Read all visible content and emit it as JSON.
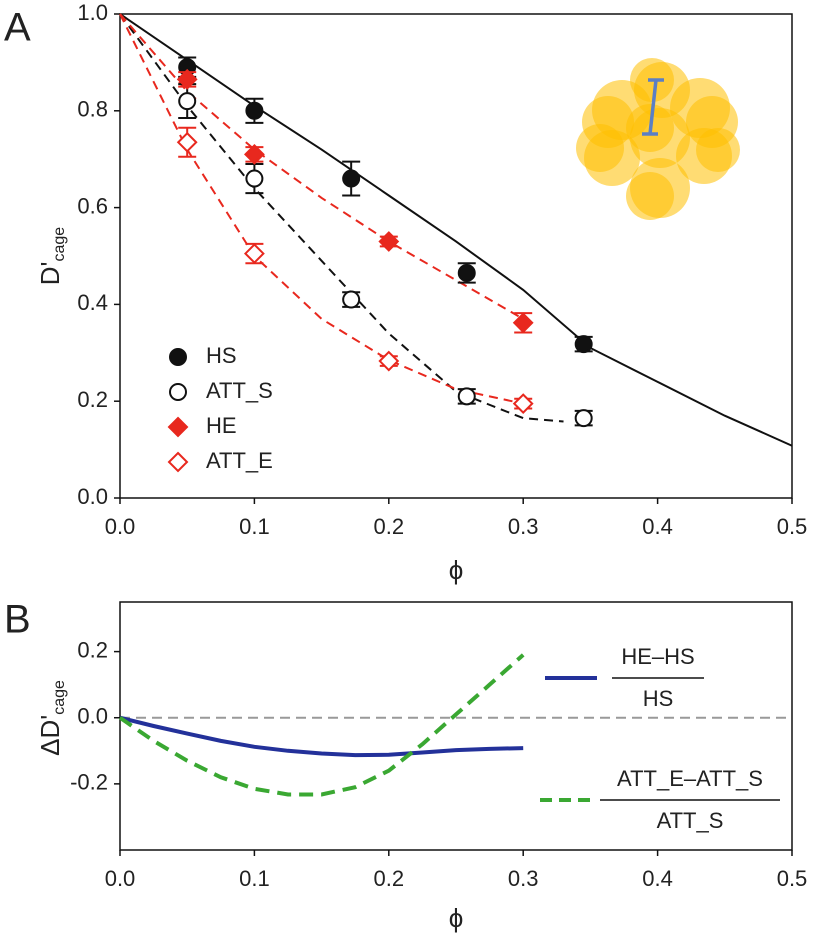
{
  "chart_data": [
    {
      "type": "scatter",
      "panel": "A",
      "xlabel": "ϕ",
      "ylabel": {
        "main": "D'",
        "sub": "cage"
      },
      "xlim": [
        0,
        0.5
      ],
      "ylim": [
        0,
        1
      ],
      "xticks": [
        {
          "value": 0,
          "label": "0.0"
        },
        0.1,
        0.2,
        0.3,
        0.4,
        0.5
      ],
      "yticks": [
        {
          "value": 0,
          "label": "0.0"
        },
        0.2,
        0.4,
        0.6,
        0.8,
        {
          "value": 1,
          "label": "1.0"
        }
      ],
      "series": [
        {
          "name": "HS",
          "color": "#111111",
          "marker": "circle",
          "filled": true,
          "x": [
            0.05,
            0.1,
            0.172,
            0.258,
            0.345
          ],
          "values": [
            0.89,
            0.8,
            0.66,
            0.465,
            0.318
          ],
          "errors": [
            0.02,
            0.025,
            0.035,
            0.02,
            0.015
          ]
        },
        {
          "name": "ATT_S",
          "color": "#111111",
          "marker": "circle",
          "filled": false,
          "x": [
            0.05,
            0.1,
            0.172,
            0.258,
            0.345
          ],
          "values": [
            0.82,
            0.66,
            0.41,
            0.21,
            0.165
          ],
          "errors": [
            0.035,
            0.03,
            0.015,
            0.015,
            0.015
          ]
        },
        {
          "name": "HE",
          "color": "#e8281e",
          "marker": "diamond",
          "filled": true,
          "x": [
            0.05,
            0.1,
            0.2,
            0.3
          ],
          "values": [
            0.865,
            0.71,
            0.53,
            0.362
          ],
          "errors": [
            0.015,
            0.015,
            0.01,
            0.02
          ]
        },
        {
          "name": "ATT_E",
          "color": "#e8281e",
          "marker": "diamond",
          "filled": false,
          "x": [
            0.05,
            0.1,
            0.2,
            0.3
          ],
          "values": [
            0.735,
            0.505,
            0.283,
            0.195
          ],
          "errors": [
            0.03,
            0.02,
            0.01,
            0.01
          ]
        }
      ],
      "fits": [
        {
          "color": "#111111",
          "dashed": false,
          "x": [
            0,
            0.05,
            0.1,
            0.15,
            0.2,
            0.25,
            0.3,
            0.35,
            0.4,
            0.45,
            0.5
          ],
          "values": [
            1,
            0.905,
            0.81,
            0.72,
            0.625,
            0.53,
            0.43,
            0.31,
            0.24,
            0.17,
            0.108
          ]
        },
        {
          "color": "#111111",
          "dashed": true,
          "x": [
            0,
            0.05,
            0.1,
            0.15,
            0.2,
            0.25,
            0.3,
            0.33
          ],
          "values": [
            1,
            0.81,
            0.64,
            0.49,
            0.34,
            0.22,
            0.165,
            0.158
          ]
        },
        {
          "color": "#e8281e",
          "dashed": true,
          "x": [
            0,
            0.05,
            0.1,
            0.15,
            0.2,
            0.25,
            0.3
          ],
          "values": [
            1,
            0.84,
            0.72,
            0.62,
            0.53,
            0.45,
            0.37
          ]
        },
        {
          "color": "#e8281e",
          "dashed": true,
          "x": [
            0,
            0.05,
            0.1,
            0.15,
            0.2,
            0.25,
            0.3
          ],
          "values": [
            1,
            0.72,
            0.5,
            0.37,
            0.285,
            0.225,
            0.195
          ]
        }
      ]
    },
    {
      "type": "line",
      "panel": "B",
      "xlabel": "ϕ",
      "ylabel": {
        "main": "ΔD'",
        "sub": "cage"
      },
      "xlim": [
        0,
        0.5
      ],
      "ylim": [
        -0.4,
        0.35
      ],
      "xticks": [
        {
          "value": 0,
          "label": "0.0"
        },
        0.1,
        0.2,
        0.3,
        0.4,
        0.5
      ],
      "yticks": [
        -0.2,
        {
          "value": 0,
          "label": "0.0"
        },
        0.2
      ],
      "hline": {
        "value": 0,
        "color": "#999999"
      },
      "x": [
        0,
        0.025,
        0.05,
        0.075,
        0.1,
        0.125,
        0.15,
        0.175,
        0.2,
        0.225,
        0.25,
        0.275,
        0.3
      ],
      "series": [
        {
          "name": {
            "numerator": "HE–HS",
            "denominator": "HS"
          },
          "color": "#23319a",
          "dashed": false,
          "values": [
            0,
            -0.025,
            -0.048,
            -0.07,
            -0.088,
            -0.1,
            -0.108,
            -0.113,
            -0.112,
            -0.105,
            -0.098,
            -0.094,
            -0.092
          ]
        },
        {
          "name": {
            "numerator": "ATT_E–ATT_S",
            "denominator": "ATT_S"
          },
          "color": "#3aa832",
          "dashed": true,
          "values": [
            0,
            -0.07,
            -0.13,
            -0.18,
            -0.215,
            -0.232,
            -0.232,
            -0.21,
            -0.16,
            -0.08,
            0.01,
            0.1,
            0.19
          ]
        }
      ]
    }
  ]
}
